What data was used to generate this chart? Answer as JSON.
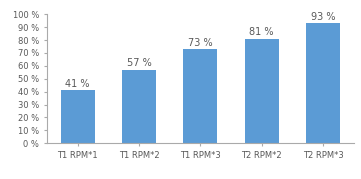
{
  "categories": [
    "T1 RPM*1",
    "T1 RPM*2",
    "T1 RPM*3",
    "T2 RPM*2",
    "T2 RPM*3"
  ],
  "values": [
    41,
    57,
    73,
    81,
    93
  ],
  "bar_color": "#5B9BD5",
  "ylim": [
    0,
    100
  ],
  "yticks": [
    0,
    10,
    20,
    30,
    40,
    50,
    60,
    70,
    80,
    90,
    100
  ],
  "ytick_labels": [
    "0 %",
    "10 %",
    "20 %",
    "30 %",
    "40 %",
    "50 %",
    "60 %",
    "70 %",
    "80 %",
    "90 %",
    "100 %"
  ],
  "tick_fontsize": 6.0,
  "bar_label_fontsize": 7.0,
  "background_color": "#ffffff",
  "label_color": "#595959",
  "spine_color": "#AAAAAA",
  "bar_width": 0.55
}
